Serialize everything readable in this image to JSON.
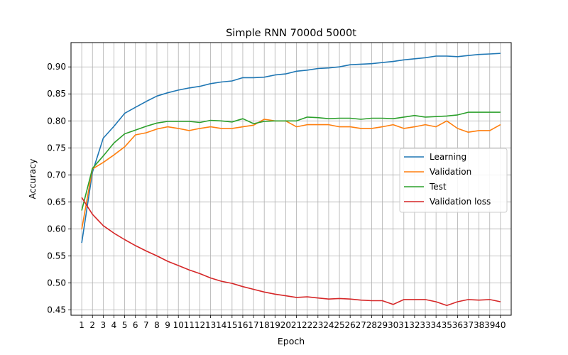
{
  "chart_data": {
    "type": "line",
    "title": "Simple RNN 7000d 5000t",
    "xlabel": "Epoch",
    "ylabel": "Accuracy",
    "x": [
      1,
      2,
      3,
      4,
      5,
      6,
      7,
      8,
      9,
      10,
      11,
      12,
      13,
      14,
      15,
      16,
      17,
      18,
      19,
      20,
      21,
      22,
      23,
      24,
      25,
      26,
      27,
      28,
      29,
      30,
      31,
      32,
      33,
      34,
      35,
      36,
      37,
      38,
      39,
      40
    ],
    "xticks": [
      "1",
      "2",
      "3",
      "4",
      "5",
      "6",
      "7",
      "8",
      "9",
      "10",
      "11",
      "12",
      "13",
      "14",
      "15",
      "16",
      "17",
      "18",
      "19",
      "20",
      "21",
      "22",
      "23",
      "24",
      "25",
      "26",
      "27",
      "28",
      "29",
      "30",
      "31",
      "32",
      "33",
      "34",
      "35",
      "36",
      "37",
      "38",
      "39",
      "40"
    ],
    "yticks": [
      "0.45",
      "0.50",
      "0.55",
      "0.60",
      "0.65",
      "0.70",
      "0.75",
      "0.80",
      "0.85",
      "0.90"
    ],
    "ylim": [
      0.44,
      0.945
    ],
    "grid": true,
    "legend_position": "center-right",
    "series": [
      {
        "name": "Learning",
        "color": "#1f77b4",
        "values": [
          0.574,
          0.705,
          0.768,
          0.79,
          0.814,
          0.825,
          0.836,
          0.846,
          0.852,
          0.857,
          0.861,
          0.864,
          0.869,
          0.872,
          0.874,
          0.88,
          0.88,
          0.881,
          0.885,
          0.887,
          0.892,
          0.894,
          0.897,
          0.898,
          0.9,
          0.904,
          0.905,
          0.906,
          0.908,
          0.91,
          0.913,
          0.915,
          0.917,
          0.92,
          0.92,
          0.919,
          0.921,
          0.923,
          0.924,
          0.925
        ]
      },
      {
        "name": "Validation",
        "color": "#ff7f0e",
        "values": [
          0.599,
          0.711,
          0.723,
          0.737,
          0.752,
          0.774,
          0.778,
          0.785,
          0.789,
          0.786,
          0.782,
          0.786,
          0.789,
          0.786,
          0.786,
          0.789,
          0.792,
          0.803,
          0.8,
          0.8,
          0.789,
          0.793,
          0.793,
          0.793,
          0.789,
          0.789,
          0.786,
          0.786,
          0.789,
          0.793,
          0.786,
          0.789,
          0.793,
          0.789,
          0.8,
          0.786,
          0.779,
          0.782,
          0.782,
          0.793
        ]
      },
      {
        "name": "Test",
        "color": "#2ca02c",
        "values": [
          0.634,
          0.712,
          0.735,
          0.759,
          0.776,
          0.783,
          0.79,
          0.796,
          0.799,
          0.799,
          0.799,
          0.797,
          0.801,
          0.8,
          0.798,
          0.804,
          0.795,
          0.799,
          0.8,
          0.8,
          0.8,
          0.807,
          0.806,
          0.804,
          0.805,
          0.805,
          0.803,
          0.805,
          0.805,
          0.804,
          0.807,
          0.81,
          0.807,
          0.808,
          0.809,
          0.811,
          0.816,
          0.816,
          0.816,
          0.816
        ]
      },
      {
        "name": "Validation loss",
        "color": "#d62728",
        "values": [
          0.658,
          0.627,
          0.606,
          0.592,
          0.58,
          0.569,
          0.559,
          0.55,
          0.54,
          0.532,
          0.524,
          0.517,
          0.509,
          0.503,
          0.499,
          0.493,
          0.488,
          0.483,
          0.479,
          0.476,
          0.473,
          0.474,
          0.472,
          0.47,
          0.471,
          0.47,
          0.468,
          0.467,
          0.467,
          0.46,
          0.469,
          0.469,
          0.469,
          0.465,
          0.458,
          0.465,
          0.469,
          0.468,
          0.469,
          0.465
        ]
      }
    ]
  }
}
